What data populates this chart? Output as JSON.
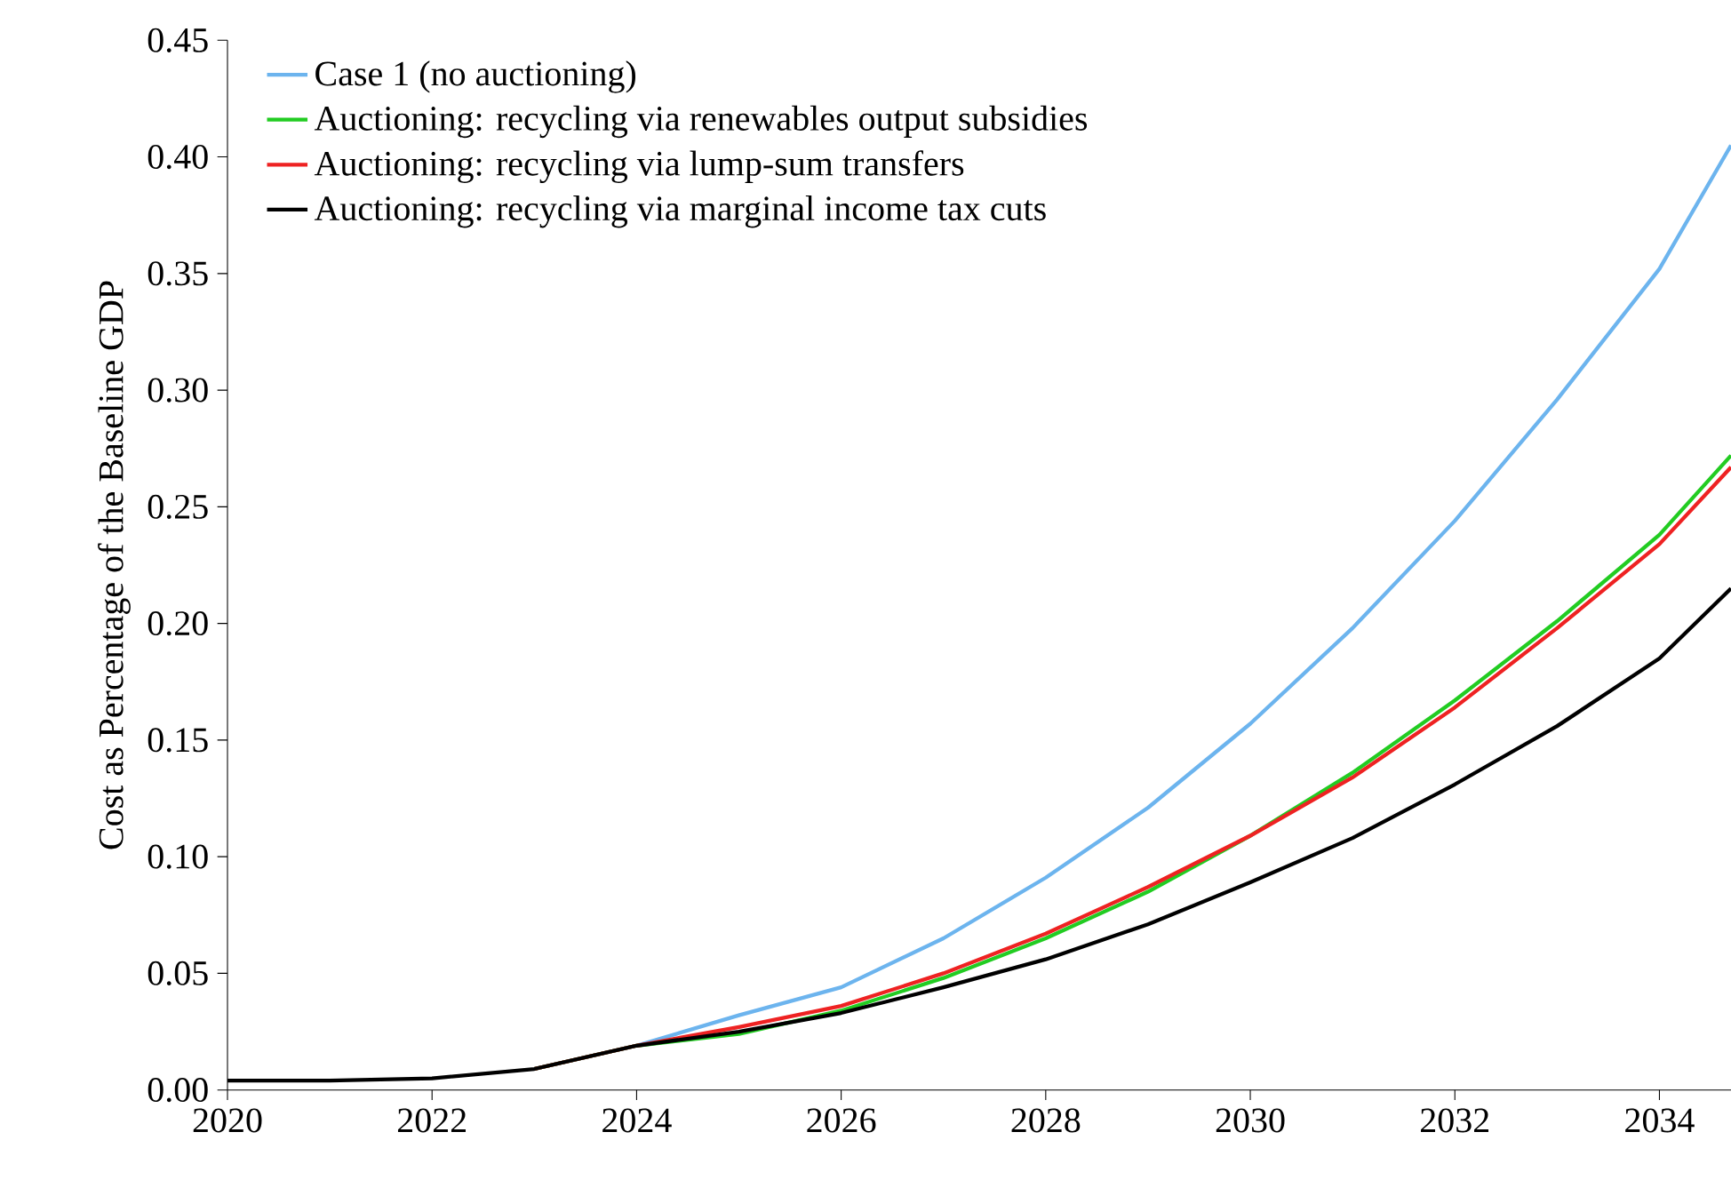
{
  "chart_data": {
    "type": "line",
    "ylabel": "Cost as Percentage of the Baseline GDP",
    "x": [
      2020,
      2021,
      2022,
      2023,
      2024,
      2025,
      2026,
      2027,
      2028,
      2029,
      2030,
      2031,
      2032,
      2033,
      2034,
      2034.7
    ],
    "series": [
      {
        "name": "Case 1 (no auctioning)",
        "color": "#6cb4ee",
        "values": [
          null,
          null,
          null,
          0.009,
          0.019,
          0.032,
          0.044,
          0.065,
          0.091,
          0.121,
          0.157,
          0.198,
          0.244,
          0.296,
          0.352,
          0.405
        ]
      },
      {
        "name": "Auctioning: recycling via renewables output subsidies",
        "color": "#22cc22",
        "values": [
          null,
          null,
          null,
          0.009,
          0.019,
          0.024,
          0.034,
          0.048,
          0.065,
          0.085,
          0.109,
          0.136,
          0.167,
          0.201,
          0.238,
          0.272
        ]
      },
      {
        "name": "Auctioning: recycling via lump-sum transfers",
        "color": "#ee2222",
        "values": [
          null,
          null,
          null,
          0.009,
          0.019,
          0.027,
          0.036,
          0.05,
          0.067,
          0.087,
          0.109,
          0.134,
          0.164,
          0.198,
          0.234,
          0.267
        ]
      },
      {
        "name": "Auctioning: recycling via marginal income tax cuts",
        "color": "#000000",
        "values": [
          0.004,
          0.004,
          0.005,
          0.009,
          0.019,
          0.025,
          0.033,
          0.044,
          0.056,
          0.071,
          0.089,
          0.108,
          0.131,
          0.156,
          0.185,
          0.215
        ]
      }
    ],
    "xlim": [
      2020,
      2034.7
    ],
    "xticks": [
      2020,
      2022,
      2024,
      2026,
      2028,
      2030,
      2032,
      2034
    ],
    "ylim": [
      0,
      0.45
    ],
    "yticks": [
      {
        "value": 0,
        "label": "0.00"
      },
      {
        "value": 0.05,
        "label": "0.05"
      },
      {
        "value": 0.1,
        "label": "0.10"
      },
      {
        "value": 0.15,
        "label": "0.15"
      },
      {
        "value": 0.2,
        "label": "0.20"
      },
      {
        "value": 0.25,
        "label": "0.25"
      },
      {
        "value": 0.3,
        "label": "0.30"
      },
      {
        "value": 0.35,
        "label": "0.35"
      },
      {
        "value": 0.4,
        "label": "0.40"
      },
      {
        "value": 0.45,
        "label": "0.45"
      }
    ],
    "legend": "top left",
    "grid": false,
    "marker": "none",
    "line_style": "solid"
  }
}
